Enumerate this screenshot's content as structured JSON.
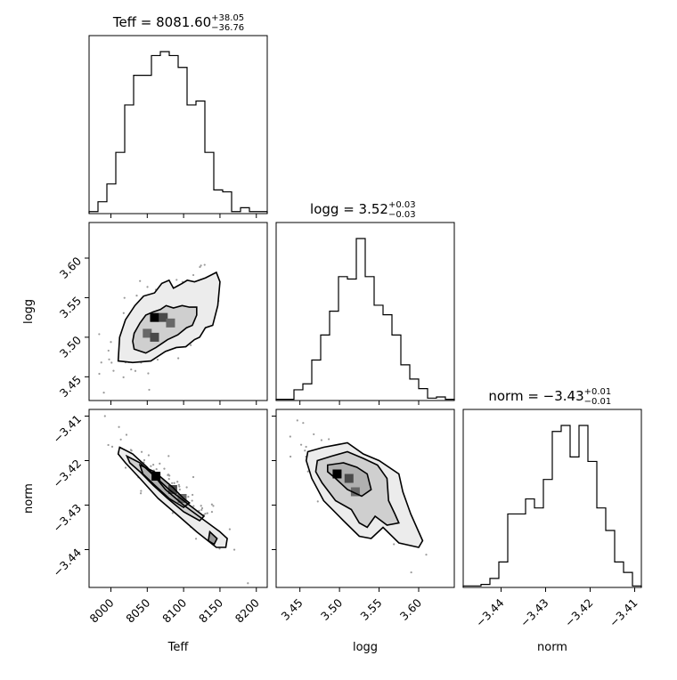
{
  "chart_data": {
    "type": "corner",
    "parameters": [
      "Teff",
      "logg",
      "norm"
    ],
    "titles": [
      {
        "param": "Teff",
        "prefix": "Teff = ",
        "value": "8081.60",
        "plus": "+38.05",
        "minus": "−36.76"
      },
      {
        "param": "logg",
        "prefix": "logg = ",
        "value": "3.52",
        "plus": "+0.03",
        "minus": "−0.03"
      },
      {
        "param": "norm",
        "prefix": "norm = ",
        "value": "−3.43",
        "plus": "+0.01",
        "minus": "−0.01"
      }
    ],
    "axes": {
      "Teff": {
        "range": [
          7970,
          8215
        ],
        "ticks": [
          8000,
          8050,
          8100,
          8150,
          8200
        ],
        "tick_labels": [
          "8000",
          "8050",
          "8100",
          "8150",
          "8200"
        ]
      },
      "logg": {
        "range": [
          3.42,
          3.645
        ],
        "ticks": [
          3.45,
          3.5,
          3.55,
          3.6
        ],
        "tick_labels": [
          "3.45",
          "3.50",
          "3.55",
          "3.60"
        ]
      },
      "norm": {
        "range": [
          -3.4485,
          -3.4085
        ],
        "ticks": [
          -3.44,
          -3.43,
          -3.42,
          -3.41
        ],
        "tick_labels": [
          "−3.44",
          "−3.43",
          "−3.42",
          "−3.41"
        ]
      }
    },
    "histograms": {
      "Teff": {
        "edges": [
          7970,
          7982.25,
          7994.5,
          8006.75,
          8019,
          8031.25,
          8043.5,
          8055.75,
          8068,
          8080.25,
          8092.5,
          8104.75,
          8117,
          8129.25,
          8141.5,
          8153.75,
          8166,
          8178.25,
          8190.5,
          8202.75,
          8215
        ],
        "counts": [
          1,
          6,
          15,
          31,
          55,
          70,
          70,
          80,
          82,
          80,
          74,
          55,
          57,
          31,
          12,
          11,
          1,
          3,
          1,
          1
        ]
      },
      "logg": {
        "edges": [
          3.42,
          3.43125,
          3.4425,
          3.45375,
          3.465,
          3.47625,
          3.4875,
          3.49875,
          3.51,
          3.52125,
          3.5325,
          3.54375,
          3.555,
          3.56625,
          3.5775,
          3.58875,
          3.6,
          3.61125,
          3.6225,
          3.63375,
          3.645
        ],
        "counts": [
          1,
          1,
          9,
          14,
          34,
          55,
          75,
          104,
          102,
          136,
          104,
          80,
          72,
          55,
          30,
          18,
          10,
          2,
          3,
          1
        ]
      },
      "norm": {
        "edges": [
          -3.4485,
          -3.4465,
          -3.4445,
          -3.4425,
          -3.4405,
          -3.4385,
          -3.4365,
          -3.4345,
          -3.4325,
          -3.4305,
          -3.4285,
          -3.4265,
          -3.4245,
          -3.4225,
          -3.4205,
          -3.4185,
          -3.4165,
          -3.4145,
          -3.4125,
          -3.4105,
          -3.4085
        ],
        "counts": [
          1,
          1,
          2,
          6,
          17,
          49,
          49,
          59,
          53,
          72,
          104,
          108,
          87,
          108,
          84,
          53,
          38,
          17,
          10,
          1
        ]
      }
    },
    "contours": {
      "logg_vs_Teff": [
        [
          [
            8010,
            3.47
          ],
          [
            8030,
            3.468
          ],
          [
            8055,
            3.47
          ],
          [
            8075,
            3.482
          ],
          [
            8090,
            3.487
          ],
          [
            8103,
            3.488
          ],
          [
            8115,
            3.497
          ],
          [
            8122,
            3.5
          ],
          [
            8130,
            3.512
          ],
          [
            8140,
            3.515
          ],
          [
            8147,
            3.54
          ],
          [
            8150,
            3.57
          ],
          [
            8145,
            3.582
          ],
          [
            8130,
            3.575
          ],
          [
            8115,
            3.57
          ],
          [
            8105,
            3.572
          ],
          [
            8098,
            3.568
          ],
          [
            8092,
            3.565
          ],
          [
            8086,
            3.562
          ],
          [
            8080,
            3.572
          ],
          [
            8070,
            3.568
          ],
          [
            8060,
            3.556
          ],
          [
            8045,
            3.552
          ],
          [
            8033,
            3.54
          ],
          [
            8020,
            3.522
          ],
          [
            8012,
            3.5
          ],
          [
            8010,
            3.47
          ]
        ],
        [
          [
            8032,
            3.485
          ],
          [
            8048,
            3.48
          ],
          [
            8062,
            3.487
          ],
          [
            8078,
            3.497
          ],
          [
            8092,
            3.503
          ],
          [
            8104,
            3.512
          ],
          [
            8112,
            3.515
          ],
          [
            8118,
            3.528
          ],
          [
            8118,
            3.538
          ],
          [
            8108,
            3.538
          ],
          [
            8098,
            3.54
          ],
          [
            8086,
            3.537
          ],
          [
            8076,
            3.54
          ],
          [
            8068,
            3.535
          ],
          [
            8058,
            3.532
          ],
          [
            8048,
            3.528
          ],
          [
            8040,
            3.518
          ],
          [
            8032,
            3.505
          ],
          [
            8030,
            3.495
          ],
          [
            8032,
            3.485
          ]
        ]
      ],
      "norm_vs_Teff": [
        [
          [
            8012,
            -3.417
          ],
          [
            8030,
            -3.4185
          ],
          [
            8050,
            -3.4215
          ],
          [
            8075,
            -3.4265
          ],
          [
            8100,
            -3.43
          ],
          [
            8125,
            -3.433
          ],
          [
            8150,
            -3.436
          ],
          [
            8160,
            -3.4375
          ],
          [
            8158,
            -3.4395
          ],
          [
            8145,
            -3.4395
          ],
          [
            8118,
            -3.436
          ],
          [
            8090,
            -3.432
          ],
          [
            8065,
            -3.4285
          ],
          [
            8040,
            -3.424
          ],
          [
            8020,
            -3.4205
          ],
          [
            8010,
            -3.4185
          ],
          [
            8012,
            -3.417
          ]
        ],
        [
          [
            8022,
            -3.419
          ],
          [
            8040,
            -3.4205
          ],
          [
            8060,
            -3.4235
          ],
          [
            8080,
            -3.4265
          ],
          [
            8100,
            -3.429
          ],
          [
            8120,
            -3.4315
          ],
          [
            8128,
            -3.4325
          ],
          [
            8122,
            -3.4335
          ],
          [
            8100,
            -3.4315
          ],
          [
            8078,
            -3.4285
          ],
          [
            8058,
            -3.4255
          ],
          [
            8040,
            -3.4225
          ],
          [
            8026,
            -3.4205
          ],
          [
            8022,
            -3.419
          ]
        ],
        [
          [
            8040,
            -3.421
          ],
          [
            8060,
            -3.4225
          ],
          [
            8085,
            -3.426
          ],
          [
            8100,
            -3.4285
          ],
          [
            8108,
            -3.4295
          ],
          [
            8100,
            -3.4305
          ],
          [
            8080,
            -3.4285
          ],
          [
            8060,
            -3.4255
          ],
          [
            8044,
            -3.423
          ],
          [
            8040,
            -3.421
          ]
        ],
        [
          [
            8136,
            -3.436
          ],
          [
            8146,
            -3.4375
          ],
          [
            8142,
            -3.4388
          ],
          [
            8134,
            -3.438
          ],
          [
            8136,
            -3.436
          ]
        ]
      ],
      "norm_vs_logg": [
        [
          [
            3.46,
            -3.418
          ],
          [
            3.48,
            -3.417
          ],
          [
            3.51,
            -3.416
          ],
          [
            3.53,
            -3.4185
          ],
          [
            3.55,
            -3.42
          ],
          [
            3.575,
            -3.423
          ],
          [
            3.58,
            -3.427
          ],
          [
            3.59,
            -3.432
          ],
          [
            3.6,
            -3.436
          ],
          [
            3.605,
            -3.438
          ],
          [
            3.6,
            -3.4395
          ],
          [
            3.575,
            -3.4385
          ],
          [
            3.555,
            -3.435
          ],
          [
            3.54,
            -3.4375
          ],
          [
            3.525,
            -3.437
          ],
          [
            3.505,
            -3.4335
          ],
          [
            3.48,
            -3.429
          ],
          [
            3.465,
            -3.424
          ],
          [
            3.458,
            -3.42
          ],
          [
            3.46,
            -3.418
          ]
        ],
        [
          [
            3.472,
            -3.42
          ],
          [
            3.49,
            -3.419
          ],
          [
            3.51,
            -3.418
          ],
          [
            3.53,
            -3.4195
          ],
          [
            3.548,
            -3.421
          ],
          [
            3.56,
            -3.424
          ],
          [
            3.562,
            -3.429
          ],
          [
            3.57,
            -3.432
          ],
          [
            3.575,
            -3.434
          ],
          [
            3.56,
            -3.4345
          ],
          [
            3.545,
            -3.4325
          ],
          [
            3.535,
            -3.435
          ],
          [
            3.525,
            -3.434
          ],
          [
            3.515,
            -3.431
          ],
          [
            3.495,
            -3.429
          ],
          [
            3.478,
            -3.425
          ],
          [
            3.47,
            -3.4225
          ],
          [
            3.472,
            -3.42
          ]
        ],
        [
          [
            3.485,
            -3.421
          ],
          [
            3.505,
            -3.4205
          ],
          [
            3.522,
            -3.4215
          ],
          [
            3.535,
            -3.423
          ],
          [
            3.54,
            -3.4265
          ],
          [
            3.528,
            -3.428
          ],
          [
            3.51,
            -3.4265
          ],
          [
            3.495,
            -3.424
          ],
          [
            3.485,
            -3.4225
          ],
          [
            3.485,
            -3.421
          ]
        ]
      ]
    },
    "density_peaks": {
      "logg_vs_Teff": [
        [
          8060,
          3.525
        ],
        [
          8072,
          3.525
        ],
        [
          8050,
          3.505
        ],
        [
          8060,
          3.5
        ],
        [
          8082,
          3.518
        ]
      ],
      "norm_vs_Teff": [
        [
          8062,
          -3.4235
        ],
        [
          8085,
          -3.4265
        ],
        [
          8098,
          -3.4285
        ]
      ],
      "norm_vs_logg": [
        [
          3.497,
          -3.423
        ],
        [
          3.512,
          -3.424
        ],
        [
          3.52,
          -3.427
        ]
      ]
    }
  }
}
